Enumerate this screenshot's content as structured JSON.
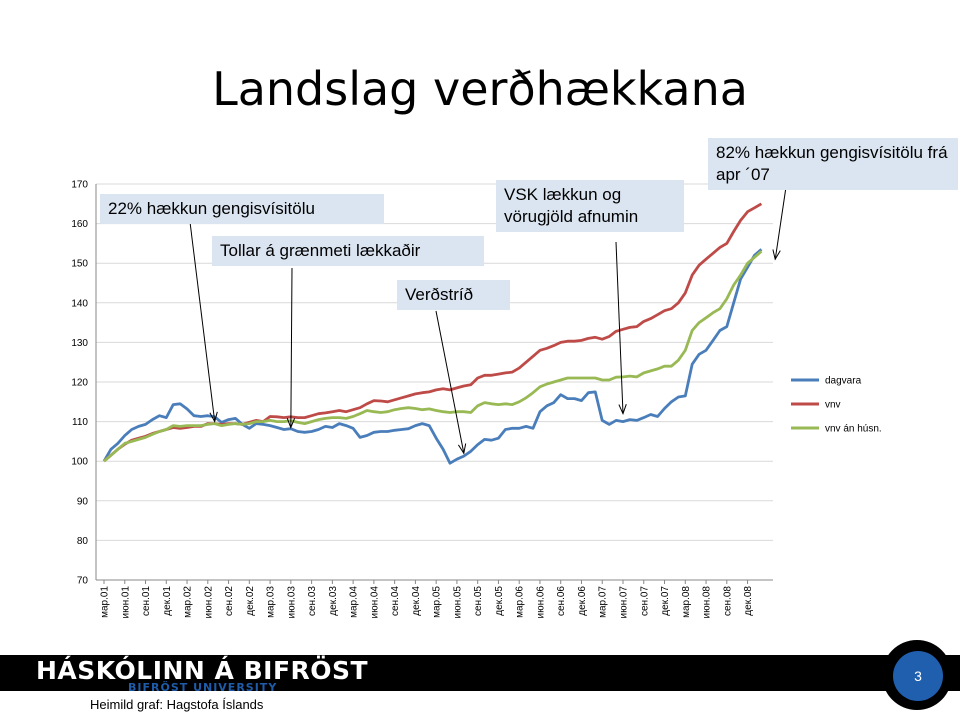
{
  "slide": {
    "title": "Landslag verðhækkana",
    "page_number": "3",
    "source": "Heimild graf: Hagstofa Íslands",
    "logo_text": "HÁSKÓLINN Á BIFRÖST",
    "logo_subtext": "BIFRÖST UNIVERSITY"
  },
  "annotations": [
    {
      "text": "22% hækkun gengisvísitölu",
      "target": {
        "x": 16,
        "y": 110
      }
    },
    {
      "text": "Tollar á grænmeti lækkaðir",
      "target": {
        "x": 27,
        "y": 108.5
      }
    },
    {
      "text": "Verðstríð",
      "target": {
        "x": 52,
        "y": 102
      }
    },
    {
      "text": "VSK lækkun og vörugjöld afnumin",
      "target": {
        "x": 75,
        "y": 112
      }
    },
    {
      "text": "82% hækkun gengisvísitölu frá apr ´07",
      "target": {
        "x": 97,
        "y": 151
      }
    }
  ],
  "chart_data": {
    "type": "line",
    "title": "",
    "xlabel": "",
    "ylabel": "",
    "ylim": [
      70,
      170
    ],
    "yticks": [
      70,
      80,
      90,
      100,
      110,
      120,
      130,
      140,
      150,
      160,
      170
    ],
    "grid": true,
    "legend_position": "right",
    "x_tick_labels": [
      "мар.01",
      "июн.01",
      "сен.01",
      "дек.01",
      "мар.02",
      "июн.02",
      "сен.02",
      "дек.02",
      "мар.03",
      "июн.03",
      "сен.03",
      "дек.03",
      "мар.04",
      "июн.04",
      "сен.04",
      "дек.04",
      "мар.05",
      "июн.05",
      "сен.05",
      "дек.05",
      "мар.06",
      "июн.06",
      "сен.06",
      "дек.06",
      "мар.07",
      "июн.07",
      "сен.07",
      "дек.07",
      "мар.08",
      "июн.08",
      "сен.08",
      "дек.08"
    ],
    "series": [
      {
        "name": "dagvara",
        "color": "#4a7ebb",
        "values": [
          100,
          103,
          104.5,
          106.5,
          108,
          108.8,
          109.3,
          110.5,
          111.5,
          111,
          114.3,
          114.5,
          113.2,
          111.5,
          111.3,
          111.5,
          111.2,
          109.8,
          110.5,
          110.8,
          109.3,
          108.3,
          109.5,
          109.3,
          109,
          108.5,
          108,
          108.2,
          107.5,
          107.3,
          107.5,
          108,
          108.8,
          108.5,
          109.5,
          109,
          108.3,
          106,
          106.5,
          107.3,
          107.5,
          107.5,
          107.8,
          108,
          108.2,
          109,
          109.5,
          109,
          105.8,
          103,
          99.5,
          100.5,
          101.3,
          102.5,
          104.2,
          105.5,
          105.3,
          105.8,
          108,
          108.3,
          108.3,
          108.8,
          108.3,
          112.5,
          114,
          114.8,
          116.8,
          115.8,
          115.8,
          115.3,
          117.3,
          117.5,
          110.3,
          109.3,
          110.3,
          110,
          110.5,
          110.3,
          111,
          111.8,
          111.3,
          113.3,
          115,
          116.2,
          116.5,
          124.5,
          127,
          128,
          130.5,
          133,
          134,
          140,
          146,
          149,
          152,
          153.5
        ]
      },
      {
        "name": "vnv",
        "color": "#be4b48",
        "values": [
          100,
          101.5,
          103,
          104.3,
          105.3,
          105.8,
          106.3,
          107,
          107.5,
          108,
          108.5,
          108.3,
          108.5,
          108.8,
          108.8,
          109.5,
          109.5,
          109.3,
          109.5,
          109.5,
          109.3,
          109.8,
          110.3,
          110,
          111.3,
          111.2,
          111,
          111.2,
          111,
          111,
          111.5,
          112,
          112.2,
          112.5,
          112.8,
          112.5,
          113,
          113.5,
          114.5,
          115.3,
          115.2,
          115,
          115.5,
          116,
          116.5,
          117,
          117.3,
          117.5,
          118,
          118.3,
          118,
          118.5,
          119,
          119.3,
          121,
          121.7,
          121.7,
          122,
          122.3,
          122.5,
          123.5,
          125,
          126.5,
          128,
          128.5,
          129.2,
          130,
          130.3,
          130.3,
          130.5,
          131,
          131.3,
          130.8,
          131.5,
          132.8,
          133.3,
          133.8,
          134,
          135.3,
          136,
          137,
          138,
          138.5,
          140,
          142.5,
          147,
          149.5,
          151,
          152.5,
          154,
          155,
          158,
          160.8,
          163,
          164,
          165
        ]
      },
      {
        "name": "vnv án húsn.",
        "color": "#98b954",
        "values": [
          100,
          101.5,
          103,
          104.5,
          105,
          105.5,
          106,
          106.8,
          107.5,
          108,
          109,
          108.8,
          109,
          109,
          109,
          109.3,
          109.5,
          109,
          109.3,
          109.5,
          109.3,
          109.5,
          110,
          110,
          110.3,
          110,
          110,
          110.2,
          109.8,
          109.5,
          110,
          110.5,
          110.8,
          111,
          111,
          110.8,
          111.3,
          112,
          112.8,
          112.5,
          112.3,
          112.5,
          113,
          113.3,
          113.5,
          113.3,
          113,
          113.2,
          112.8,
          112.5,
          112.3,
          112.5,
          112.5,
          112.3,
          114,
          114.8,
          114.5,
          114.3,
          114.5,
          114.3,
          115,
          116,
          117.3,
          118.8,
          119.5,
          120,
          120.5,
          121,
          121,
          121,
          121,
          121,
          120.5,
          120.5,
          121.2,
          121.3,
          121.5,
          121.3,
          122.3,
          122.8,
          123.3,
          124,
          124,
          125.5,
          128,
          133,
          135,
          136.2,
          137.5,
          138.5,
          141,
          144.5,
          147,
          150,
          151.5,
          153
        ]
      }
    ]
  }
}
